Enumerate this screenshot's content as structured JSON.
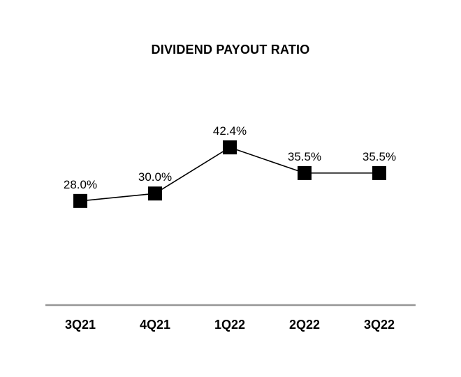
{
  "chart_data": {
    "type": "line",
    "title": "DIVIDEND PAYOUT RATIO",
    "categories": [
      "3Q21",
      "4Q21",
      "1Q22",
      "2Q22",
      "3Q22"
    ],
    "values": [
      28.0,
      30.0,
      42.4,
      35.5,
      35.5
    ],
    "value_labels": [
      "28.0%",
      "30.0%",
      "42.4%",
      "35.5%",
      "35.5%"
    ],
    "xlabel": "",
    "ylabel": "",
    "ylim": [
      0,
      55
    ],
    "grid": false,
    "legend": false,
    "colors": {
      "line": "#000000",
      "marker": "#000000",
      "label_text": "#000000",
      "axis_line": "#969696",
      "background": "#FFFFFF"
    }
  }
}
